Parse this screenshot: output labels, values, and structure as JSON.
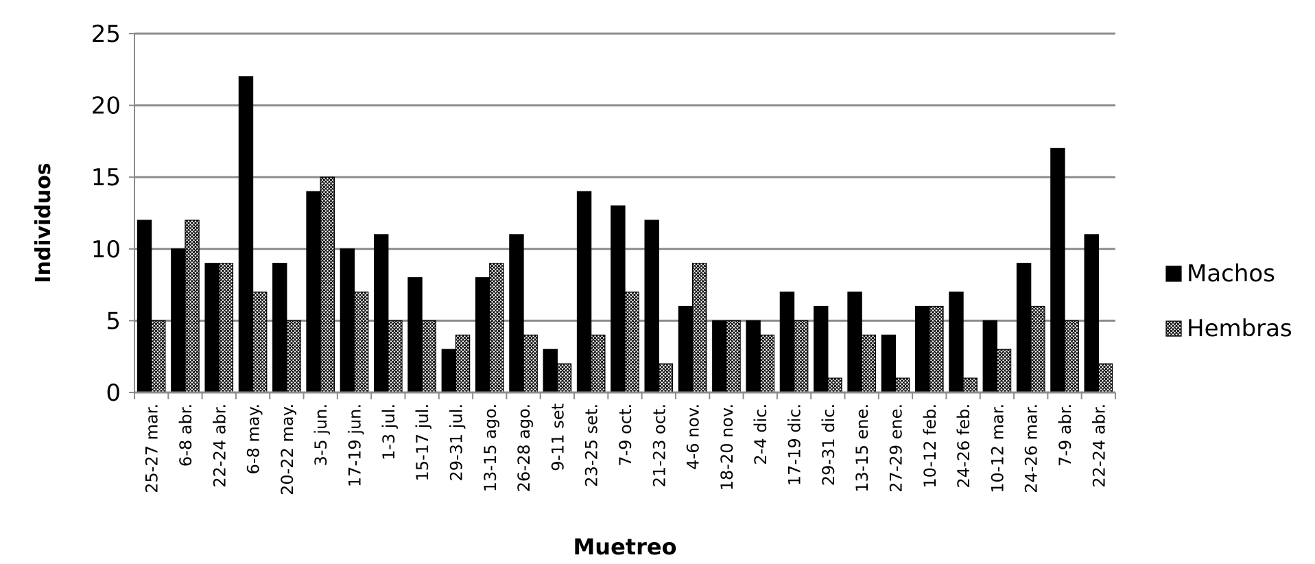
{
  "chart_data": {
    "type": "bar",
    "x_label": "Muetreo",
    "y_label": "Individuos",
    "categories": [
      "25-27 mar.",
      "6-8 abr.",
      "22-24 abr.",
      "6-8 may.",
      "20-22 may.",
      "3-5 jun.",
      "17-19 jun.",
      "1-3 jul.",
      "15-17 jul.",
      "29-31 jul.",
      "13-15 ago.",
      "26-28 ago.",
      "9-11 set",
      "23-25 set.",
      "7-9 oct.",
      "21-23 oct.",
      "4-6 nov.",
      "18-20 nov.",
      "2-4 dic.",
      "17-19 dic.",
      "29-31 dic.",
      "13-15 ene.",
      "27-29 ene.",
      "10-12 feb.",
      "24-26 feb.",
      "10-12 mar.",
      "24-26 mar.",
      "7-9 abr.",
      "22-24 abr."
    ],
    "series": [
      {
        "name": "Machos",
        "color": "#000000",
        "values": [
          12,
          10,
          9,
          22,
          9,
          14,
          10,
          11,
          8,
          3,
          8,
          11,
          3,
          14,
          13,
          12,
          6,
          5,
          5,
          7,
          6,
          7,
          4,
          6,
          7,
          5,
          9,
          17,
          11
        ]
      },
      {
        "name": "Hembras",
        "color": "#000000",
        "pattern": "crosshatch",
        "values": [
          5,
          12,
          9,
          7,
          5,
          15,
          7,
          5,
          5,
          4,
          9,
          4,
          2,
          4,
          7,
          2,
          9,
          5,
          4,
          5,
          1,
          4,
          1,
          6,
          1,
          3,
          6,
          5,
          2
        ]
      }
    ],
    "ylim": [
      0,
      25
    ],
    "yticks": [
      0,
      5,
      10,
      15,
      20,
      25
    ],
    "grid": true,
    "legend": "right"
  }
}
